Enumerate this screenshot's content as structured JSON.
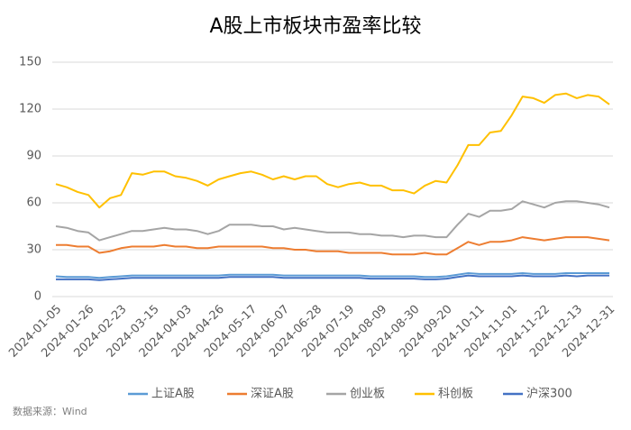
{
  "chart_data": {
    "type": "line",
    "title": "A股上市板块市盈率比较",
    "categories": [
      "2024-01-05",
      null,
      null,
      "2024-01-26",
      null,
      null,
      "2024-02-23",
      null,
      null,
      "2024-03-15",
      null,
      null,
      "2024-04-03",
      null,
      null,
      "2024-04-26",
      null,
      null,
      "2024-05-17",
      null,
      null,
      "2024-06-07",
      null,
      null,
      "2024-06-28",
      null,
      null,
      "2024-07-19",
      null,
      null,
      "2024-08-09",
      null,
      null,
      "2024-08-30",
      null,
      null,
      "2024-09-20",
      null,
      null,
      "2024-10-11",
      null,
      null,
      "2024-11-01",
      null,
      null,
      "2024-11-22",
      null,
      null,
      "2024-12-13",
      null,
      null,
      "2024-12-31"
    ],
    "series": [
      {
        "name": "上证A股",
        "color": "#5b9bd5",
        "values": [
          13,
          12.5,
          12.5,
          12.5,
          12,
          12.5,
          13,
          13.5,
          13.5,
          13.5,
          13.5,
          13.5,
          13.5,
          13.5,
          13.5,
          13.5,
          14,
          14,
          14,
          14,
          14,
          13.5,
          13.5,
          13.5,
          13.5,
          13.5,
          13.5,
          13.5,
          13.5,
          13,
          13,
          13,
          13,
          13,
          12.5,
          12.5,
          13,
          14,
          15,
          14.5,
          14.5,
          14.5,
          14.5,
          15,
          14.5,
          14.5,
          14.5,
          15,
          15,
          15,
          15,
          15
        ]
      },
      {
        "name": "深证A股",
        "color": "#ed7d31",
        "values": [
          33,
          33,
          32,
          32,
          28,
          29,
          31,
          32,
          32,
          32,
          33,
          32,
          32,
          31,
          31,
          32,
          32,
          32,
          32,
          32,
          31,
          31,
          30,
          30,
          29,
          29,
          29,
          28,
          28,
          28,
          28,
          27,
          27,
          27,
          28,
          27,
          27,
          31,
          35,
          33,
          35,
          35,
          36,
          38,
          37,
          36,
          37,
          38,
          38,
          38,
          37,
          36
        ]
      },
      {
        "name": "创业板",
        "color": "#a5a5a5",
        "values": [
          45,
          44,
          42,
          41,
          36,
          38,
          40,
          42,
          42,
          43,
          44,
          43,
          43,
          42,
          40,
          42,
          46,
          46,
          46,
          45,
          45,
          43,
          44,
          43,
          42,
          41,
          41,
          41,
          40,
          40,
          39,
          39,
          38,
          39,
          39,
          38,
          38,
          46,
          53,
          51,
          55,
          55,
          56,
          61,
          59,
          57,
          60,
          61,
          61,
          60,
          59,
          57
        ]
      },
      {
        "name": "科创板",
        "color": "#ffc000",
        "values": [
          72,
          70,
          67,
          65,
          57,
          63,
          65,
          79,
          78,
          80,
          80,
          77,
          76,
          74,
          71,
          75,
          77,
          79,
          80,
          78,
          75,
          77,
          75,
          77,
          77,
          72,
          70,
          72,
          73,
          71,
          71,
          68,
          68,
          66,
          71,
          74,
          73,
          84,
          97,
          97,
          105,
          106,
          116,
          128,
          127,
          124,
          129,
          130,
          127,
          129,
          128,
          123
        ]
      },
      {
        "name": "沪深300",
        "color": "#4472c4",
        "values": [
          11,
          11,
          11,
          11,
          10.5,
          11,
          11.5,
          12,
          12,
          12,
          12,
          12,
          12,
          12,
          12,
          12,
          12.5,
          12.5,
          12.5,
          12.5,
          12.5,
          12,
          12,
          12,
          12,
          12,
          12,
          12,
          12,
          11.5,
          11.5,
          11.5,
          11.5,
          11.5,
          11,
          11,
          11.5,
          12.5,
          13.5,
          13,
          13,
          13,
          13,
          13.5,
          13,
          13,
          13,
          13.5,
          13,
          13.5,
          13.5,
          13.5
        ]
      }
    ],
    "ylim": [
      0,
      150
    ],
    "yticks": [
      0,
      30,
      60,
      90,
      120,
      150
    ],
    "grid": true,
    "legend": "bottom",
    "source": "数据来源：Wind"
  }
}
